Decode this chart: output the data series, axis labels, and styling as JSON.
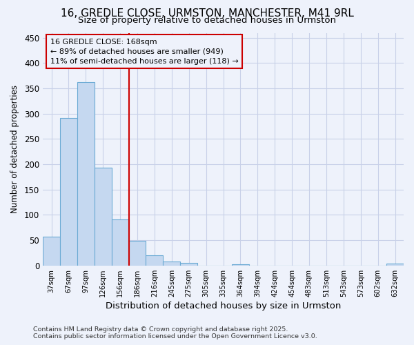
{
  "title_line1": "16, GREDLE CLOSE, URMSTON, MANCHESTER, M41 9RL",
  "title_line2": "Size of property relative to detached houses in Urmston",
  "xlabel": "Distribution of detached houses by size in Urmston",
  "ylabel": "Number of detached properties",
  "footer_line1": "Contains HM Land Registry data © Crown copyright and database right 2025.",
  "footer_line2": "Contains public sector information licensed under the Open Government Licence v3.0.",
  "categories": [
    "37sqm",
    "67sqm",
    "97sqm",
    "126sqm",
    "156sqm",
    "186sqm",
    "216sqm",
    "245sqm",
    "275sqm",
    "305sqm",
    "335sqm",
    "364sqm",
    "394sqm",
    "424sqm",
    "454sqm",
    "483sqm",
    "513sqm",
    "543sqm",
    "573sqm",
    "602sqm",
    "632sqm"
  ],
  "values": [
    57,
    291,
    362,
    194,
    91,
    49,
    20,
    8,
    5,
    0,
    0,
    3,
    0,
    0,
    0,
    0,
    0,
    0,
    0,
    0,
    4
  ],
  "bar_color": "#c5d8f0",
  "bar_edge_color": "#6aaad4",
  "background_color": "#eef2fb",
  "grid_color": "#c8d0e8",
  "vline_color": "#cc0000",
  "annotation_text": "16 GREDLE CLOSE: 168sqm\n← 89% of detached houses are smaller (949)\n11% of semi-detached houses are larger (118) →",
  "annotation_box_color": "#cc0000",
  "ylim": [
    0,
    460
  ],
  "yticks": [
    0,
    50,
    100,
    150,
    200,
    250,
    300,
    350,
    400,
    450
  ],
  "title1_fontsize": 11,
  "title2_fontsize": 9.5
}
